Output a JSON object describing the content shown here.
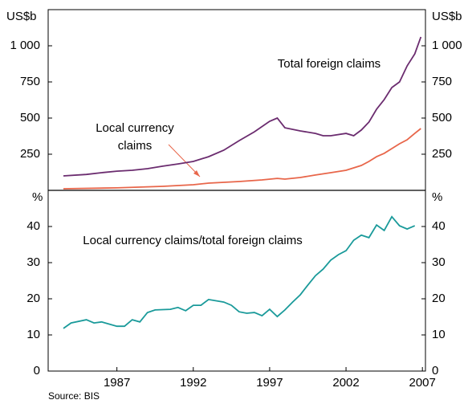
{
  "source": "Source: BIS",
  "chart_data": [
    {
      "type": "line",
      "y_unit": "US$b",
      "xlim": [
        1982.5,
        2007.2
      ],
      "ylim": [
        0,
        1250
      ],
      "yticks": [
        250,
        500,
        750,
        {
          "value": 1000,
          "label": "1 000"
        }
      ],
      "annotations": [
        "Total foreign claims",
        "Local currency",
        "claims"
      ],
      "series": [
        {
          "name": "Total foreign claims",
          "color": "#6b2c6f",
          "x": [
            1983.5,
            1985,
            1986,
            1987,
            1988,
            1989,
            1990,
            1991,
            1992,
            1993,
            1994,
            1995,
            1996,
            1997,
            1997.5,
            1998,
            1999,
            2000,
            2000.5,
            2001,
            2002,
            2002.5,
            2003,
            2003.5,
            2004,
            2004.5,
            2005,
            2005.5,
            2006,
            2006.5,
            2006.9
          ],
          "values": [
            100,
            110,
            122,
            133,
            139,
            150,
            167,
            183,
            200,
            233,
            278,
            344,
            405,
            478,
            500,
            433,
            411,
            394,
            378,
            378,
            394,
            378,
            417,
            472,
            561,
            628,
            711,
            750,
            861,
            944,
            1061
          ]
        },
        {
          "name": "Local currency claims",
          "color": "#e8664a",
          "x": [
            1983.5,
            1987,
            1990,
            1992,
            1993,
            1995,
            1996.5,
            1997.5,
            1998,
            1999,
            2000,
            2001,
            2002,
            2003,
            2003.5,
            2004,
            2004.5,
            2005,
            2005.5,
            2006,
            2006.5,
            2006.9
          ],
          "values": [
            11,
            17,
            28,
            39,
            50,
            61,
            72,
            83,
            78,
            89,
            106,
            122,
            139,
            172,
            200,
            233,
            256,
            289,
            322,
            350,
            394,
            428
          ]
        }
      ]
    },
    {
      "type": "line",
      "y_unit": "%",
      "xlim": [
        1982.5,
        2007.2
      ],
      "ylim": [
        0,
        50
      ],
      "xticks": [
        1987,
        1992,
        1997,
        2002,
        2007
      ],
      "yticks": [
        0,
        10,
        20,
        30,
        40
      ],
      "annotations": [
        "Local currency claims/total foreign claims"
      ],
      "series": [
        {
          "name": "Local currency claims/total foreign claims",
          "color": "#1a9a9a",
          "x": [
            1983.5,
            1984,
            1985,
            1985.5,
            1986,
            1987,
            1987.5,
            1988,
            1988.5,
            1989,
            1989.5,
            1990.5,
            1991,
            1991.5,
            1992,
            1992.5,
            1993,
            1994,
            1994.5,
            1995,
            1995.5,
            1996,
            1996.5,
            1997,
            1997.5,
            1998,
            1998.5,
            1999,
            1999.5,
            2000,
            2000.5,
            2001,
            2001.5,
            2002,
            2002.5,
            2003,
            2003.5,
            2004,
            2004.5,
            2005,
            2005.5,
            2006,
            2006.5
          ],
          "values": [
            11.8,
            13.3,
            14.2,
            13.3,
            13.6,
            12.4,
            12.4,
            14.2,
            13.6,
            16.2,
            16.9,
            17.1,
            17.6,
            16.7,
            18.2,
            18.2,
            19.8,
            19.1,
            18.2,
            16.4,
            16,
            16.2,
            15.3,
            17.1,
            15.1,
            16.9,
            19.1,
            21.1,
            23.8,
            26.4,
            28.2,
            30.7,
            32.2,
            33.3,
            36.2,
            37.6,
            36.9,
            40.4,
            38.9,
            42.7,
            40.2,
            39.3,
            40.2
          ]
        }
      ]
    }
  ]
}
